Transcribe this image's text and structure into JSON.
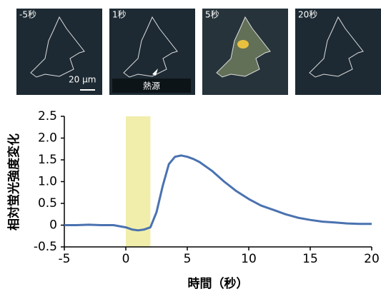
{
  "panels": [
    {
      "label": "-5秒"
    },
    {
      "label": "1秒"
    },
    {
      "label": "5秒"
    },
    {
      "label": "20秒"
    }
  ],
  "scale_bar_label": "20 μm",
  "heat_source_label": "熱源",
  "chart_data": {
    "type": "line",
    "y_label": "相対蛍光強度変化",
    "x_label": "時間（秒）",
    "x": [
      -5,
      -4,
      -3,
      -2,
      -1,
      0,
      0.5,
      1,
      1.5,
      2,
      2.5,
      3,
      3.5,
      4,
      4.5,
      5,
      5.5,
      6,
      7,
      8,
      9,
      10,
      11,
      12,
      13,
      14,
      15,
      16,
      17,
      18,
      19,
      20
    ],
    "values": [
      0,
      0,
      0.01,
      0,
      0,
      -0.05,
      -0.1,
      -0.12,
      -0.1,
      -0.05,
      0.3,
      0.9,
      1.4,
      1.57,
      1.6,
      1.57,
      1.52,
      1.45,
      1.25,
      1.0,
      0.78,
      0.6,
      0.45,
      0.35,
      0.25,
      0.17,
      0.12,
      0.08,
      0.06,
      0.04,
      0.03,
      0.03
    ],
    "color": "#4a72b0",
    "highlight_span": [
      0,
      2
    ],
    "highlight_color": "#f0eeaa",
    "xlim": [
      -5,
      20
    ],
    "ylim": [
      -0.5,
      2.5
    ],
    "xticks": [
      -5,
      0,
      5,
      10,
      15,
      20
    ],
    "yticks": [
      {
        "value": -0.5,
        "label": "-0.5"
      },
      0,
      {
        "value": 0.5,
        "label": "0.5"
      },
      {
        "value": 1,
        "label": "1.0"
      },
      {
        "value": 1.5,
        "label": "1.5"
      },
      {
        "value": 2,
        "label": "2.0"
      },
      2.5
    ]
  }
}
